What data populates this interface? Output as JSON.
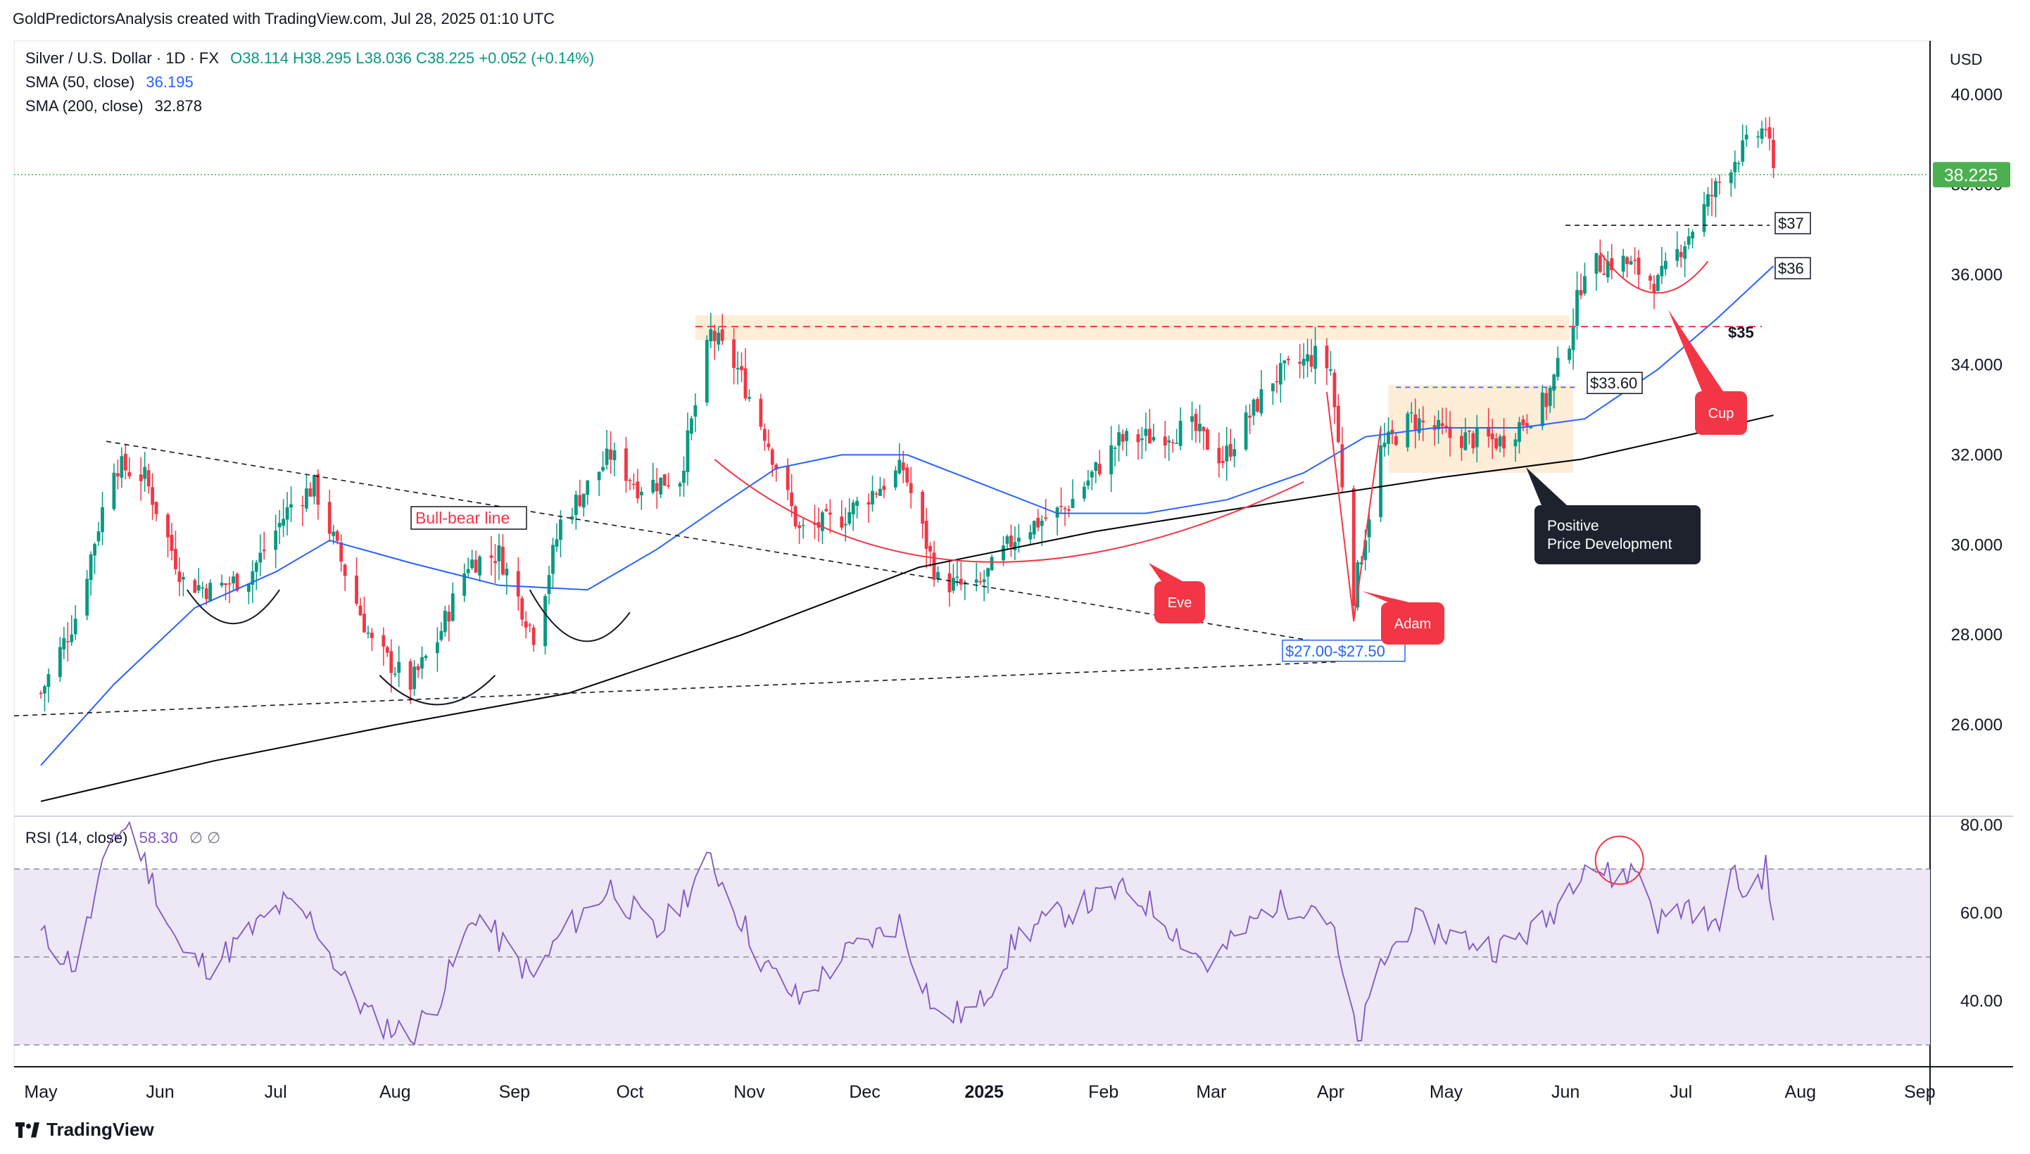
{
  "header": {
    "caption": "GoldPredictorsAnalysis created with TradingView.com, Jul 28, 2025 01:10 UTC"
  },
  "legend": {
    "symbol": "Silver / U.S. Dollar · 1D · FX",
    "ohlc": "O38.114  H38.295  L38.036  C38.225  +0.052 (+0.14%)",
    "sma50_label": "SMA (50, close)",
    "sma50_value": "36.195",
    "sma200_label": "SMA (200, close)",
    "sma200_value": "32.878",
    "rsi_label": "RSI (14, close)",
    "rsi_value": "58.30",
    "rsi_extra": "∅  ∅"
  },
  "currency": "USD",
  "brand": "TradingView",
  "colors": {
    "up": "#089981",
    "down": "#f23645",
    "sma50": "#2962ff",
    "sma200": "#000000",
    "rsi": "#7e57c2",
    "rsi_band": "#ede7f6",
    "accent_red": "#f23645",
    "last_price": "#4caf50",
    "zone": "#fde7c9"
  },
  "chart_data": [
    {
      "type": "candlestick",
      "ylim": [
        24.0,
        41.2
      ],
      "y_ticks": [
        "26.000",
        "28.000",
        "30.000",
        "32.000",
        "34.000",
        "36.000",
        "38.000",
        "40.000"
      ],
      "x_labels": [
        "May",
        "Jun",
        "Jul",
        "Aug",
        "Sep",
        "Oct",
        "Nov",
        "Dec",
        "2025",
        "Feb",
        "Mar",
        "Apr",
        "May",
        "Jun",
        "Jul",
        "Aug",
        "Sep"
      ],
      "last_price": "38.225",
      "price_path": [
        [
          "2024-05-01",
          26.7
        ],
        [
          "2024-05-10",
          28.4
        ],
        [
          "2024-05-20",
          31.8
        ],
        [
          "2024-05-28",
          31.5
        ],
        [
          "2024-06-07",
          29.2
        ],
        [
          "2024-06-14",
          29.0
        ],
        [
          "2024-06-24",
          29.3
        ],
        [
          "2024-07-05",
          30.9
        ],
        [
          "2024-07-11",
          31.3
        ],
        [
          "2024-07-19",
          29.4
        ],
        [
          "2024-07-26",
          27.8
        ],
        [
          "2024-08-05",
          26.9
        ],
        [
          "2024-08-12",
          27.9
        ],
        [
          "2024-08-20",
          29.6
        ],
        [
          "2024-08-28",
          29.8
        ],
        [
          "2024-09-06",
          28.0
        ],
        [
          "2024-09-13",
          30.5
        ],
        [
          "2024-09-26",
          32.0
        ],
        [
          "2024-10-03",
          31.3
        ],
        [
          "2024-10-14",
          31.5
        ],
        [
          "2024-10-22",
          34.7
        ],
        [
          "2024-10-29",
          33.9
        ],
        [
          "2024-11-05",
          32.5
        ],
        [
          "2024-11-14",
          30.3
        ],
        [
          "2024-11-25",
          30.6
        ],
        [
          "2024-12-02",
          31.1
        ],
        [
          "2024-12-11",
          31.7
        ],
        [
          "2024-12-20",
          29.2
        ],
        [
          "2024-12-30",
          29.0
        ],
        [
          "2025-01-10",
          30.3
        ],
        [
          "2025-01-22",
          30.8
        ],
        [
          "2025-02-05",
          32.3
        ],
        [
          "2025-02-13",
          32.4
        ],
        [
          "2025-02-24",
          32.6
        ],
        [
          "2025-03-04",
          31.9
        ],
        [
          "2025-03-17",
          33.7
        ],
        [
          "2025-03-28",
          34.2
        ],
        [
          "2025-04-01",
          33.9
        ],
        [
          "2025-04-07",
          28.9
        ],
        [
          "2025-04-14",
          32.1
        ],
        [
          "2025-04-22",
          32.8
        ],
        [
          "2025-05-02",
          32.4
        ],
        [
          "2025-05-15",
          32.3
        ],
        [
          "2025-05-27",
          33.2
        ],
        [
          "2025-06-02",
          34.6
        ],
        [
          "2025-06-06",
          36.2
        ],
        [
          "2025-06-16",
          36.3
        ],
        [
          "2025-06-25",
          35.8
        ],
        [
          "2025-07-03",
          36.9
        ],
        [
          "2025-07-14",
          38.5
        ],
        [
          "2025-07-23",
          39.3
        ],
        [
          "2025-07-25",
          38.225
        ]
      ],
      "sma50": [
        [
          "2024-05-01",
          25.1
        ],
        [
          "2024-05-20",
          26.9
        ],
        [
          "2024-06-10",
          28.6
        ],
        [
          "2024-07-01",
          29.4
        ],
        [
          "2024-07-15",
          30.1
        ],
        [
          "2024-08-05",
          29.6
        ],
        [
          "2024-08-28",
          29.1
        ],
        [
          "2024-09-20",
          29.0
        ],
        [
          "2024-10-08",
          29.9
        ],
        [
          "2024-10-25",
          30.9
        ],
        [
          "2024-11-08",
          31.7
        ],
        [
          "2024-11-25",
          32.0
        ],
        [
          "2024-12-12",
          32.0
        ],
        [
          "2024-12-30",
          31.4
        ],
        [
          "2025-01-20",
          30.7
        ],
        [
          "2025-02-12",
          30.7
        ],
        [
          "2025-03-05",
          31.0
        ],
        [
          "2025-03-25",
          31.6
        ],
        [
          "2025-04-10",
          32.4
        ],
        [
          "2025-04-28",
          32.6
        ],
        [
          "2025-05-20",
          32.6
        ],
        [
          "2025-06-06",
          32.8
        ],
        [
          "2025-06-25",
          33.9
        ],
        [
          "2025-07-10",
          35.0
        ],
        [
          "2025-07-25",
          36.195
        ]
      ],
      "sma200": [
        [
          "2024-05-01",
          24.3
        ],
        [
          "2024-06-15",
          25.2
        ],
        [
          "2024-08-01",
          26.0
        ],
        [
          "2024-09-15",
          26.7
        ],
        [
          "2024-10-30",
          28.0
        ],
        [
          "2024-12-15",
          29.5
        ],
        [
          "2025-01-30",
          30.3
        ],
        [
          "2025-03-15",
          30.9
        ],
        [
          "2025-04-30",
          31.5
        ],
        [
          "2025-06-05",
          31.9
        ],
        [
          "2025-07-01",
          32.4
        ],
        [
          "2025-07-25",
          32.878
        ]
      ],
      "price_labels": [
        "$37",
        "$36",
        "$35",
        "$33.60",
        "$27.00-$27.50"
      ],
      "annotations": [
        "Bull-bear line",
        "Eve",
        "Adam",
        "Cup",
        "Positive",
        "Price Development"
      ]
    },
    {
      "type": "line",
      "name": "RSI (14, close)",
      "ylim": [
        26,
        82
      ],
      "y_ticks": [
        "40.00",
        "60.00",
        "80.00"
      ],
      "levels": [
        30,
        50,
        70
      ],
      "values": [
        [
          "2024-05-01",
          55
        ],
        [
          "2024-05-10",
          48
        ],
        [
          "2024-05-20",
          78
        ],
        [
          "2024-05-24",
          80
        ],
        [
          "2024-06-07",
          50
        ],
        [
          "2024-06-14",
          48
        ],
        [
          "2024-07-03",
          62
        ],
        [
          "2024-07-11",
          58
        ],
        [
          "2024-07-19",
          44
        ],
        [
          "2024-07-26",
          36
        ],
        [
          "2024-08-05",
          32
        ],
        [
          "2024-08-12",
          40
        ],
        [
          "2024-08-22",
          60
        ],
        [
          "2024-09-06",
          45
        ],
        [
          "2024-09-13",
          55
        ],
        [
          "2024-09-26",
          66
        ],
        [
          "2024-10-08",
          55
        ],
        [
          "2024-10-22",
          72
        ],
        [
          "2024-11-05",
          48
        ],
        [
          "2024-11-14",
          40
        ],
        [
          "2024-11-25",
          50
        ],
        [
          "2024-12-10",
          58
        ],
        [
          "2024-12-20",
          36
        ],
        [
          "2024-12-30",
          38
        ],
        [
          "2025-01-10",
          55
        ],
        [
          "2025-01-22",
          60
        ],
        [
          "2025-02-05",
          65
        ],
        [
          "2025-02-13",
          62
        ],
        [
          "2025-02-28",
          48
        ],
        [
          "2025-03-17",
          62
        ],
        [
          "2025-03-28",
          62
        ],
        [
          "2025-04-01",
          58
        ],
        [
          "2025-04-08",
          30
        ],
        [
          "2025-04-14",
          48
        ],
        [
          "2025-04-22",
          58
        ],
        [
          "2025-05-02",
          55
        ],
        [
          "2025-05-15",
          52
        ],
        [
          "2025-05-27",
          58
        ],
        [
          "2025-06-06",
          72
        ],
        [
          "2025-06-13",
          68
        ],
        [
          "2025-06-20",
          70
        ],
        [
          "2025-06-25",
          58
        ],
        [
          "2025-07-03",
          62
        ],
        [
          "2025-07-10",
          56
        ],
        [
          "2025-07-14",
          69
        ],
        [
          "2025-07-18",
          64
        ],
        [
          "2025-07-23",
          70
        ],
        [
          "2025-07-25",
          58.3
        ]
      ]
    }
  ]
}
